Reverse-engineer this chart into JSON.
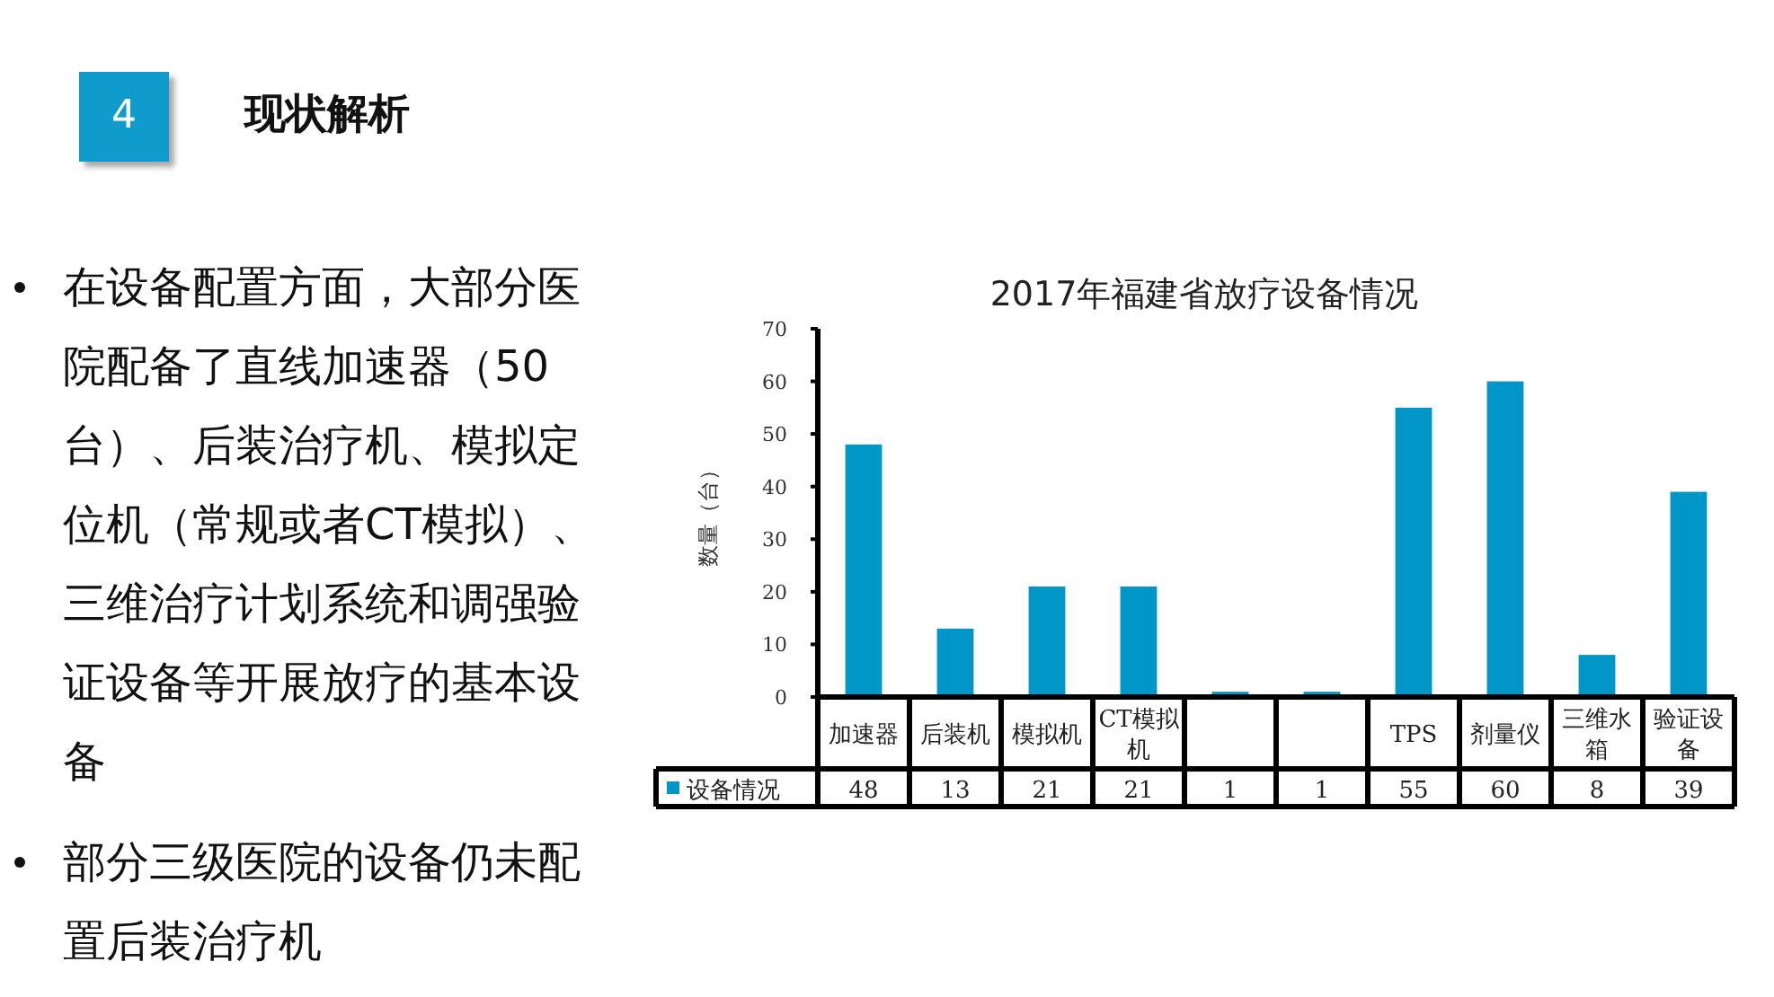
{
  "chart_data": {
    "type": "bar",
    "title": "2017年福建省放疗设备情况",
    "ylabel": "数量（台）",
    "categories": [
      "加速器",
      "后装机",
      "模拟机",
      "CT模拟机",
      null,
      null,
      "TPS",
      "剂量仪",
      "三维水箱",
      "验证设备"
    ],
    "series": [
      {
        "name": "设备情况",
        "color": "#0096c8",
        "values": [
          48,
          13,
          21,
          21,
          1,
          1,
          55,
          60,
          8,
          39
        ]
      }
    ],
    "ylim": [
      0,
      70
    ],
    "yticks": [
      0,
      10,
      20,
      30,
      40,
      50,
      60,
      70
    ],
    "data_labels": true,
    "legend": "bottom",
    "annotations": [
      "4",
      "现状解析",
      "在设备配置方面，大部分医院配备了直线加速器（50台）、后装治疗机、模拟定位机（常规或者CT模拟）、三维治疗计划系统和调强验证设备等开展放疗的基本设备",
      "部分三级医院的设备仍未配置后装治疗机"
    ]
  }
}
